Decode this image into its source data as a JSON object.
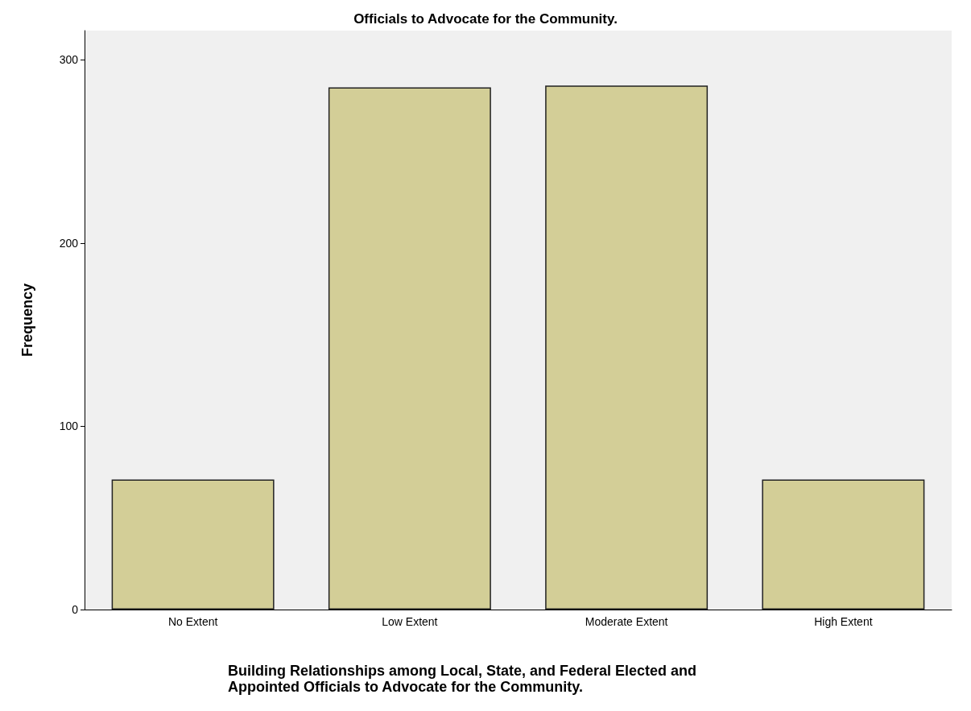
{
  "chart_data": {
    "type": "bar",
    "title": "Officials to Advocate for the Community.",
    "categories": [
      "No Extent",
      "Low Extent",
      "Moderate Extent",
      "High Extent"
    ],
    "values": [
      71,
      285,
      286,
      71
    ],
    "color": "#d3ce97",
    "xlabel": "Building Relationships among Local, State, and Federal Elected and Appointed Officials to Advocate for the Community.",
    "ylabel": "Frequency",
    "ylim": [
      0,
      316
    ],
    "yticks": [
      0,
      100,
      200,
      300
    ],
    "grid": false
  }
}
